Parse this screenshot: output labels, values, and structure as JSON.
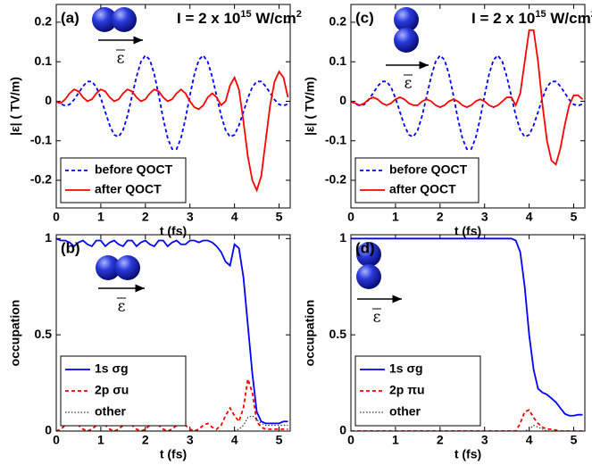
{
  "chart_data": [
    {
      "type": "line",
      "panel_label": "(a)",
      "intensity": {
        "base": "I = 2 x 10",
        "exp": "15",
        "unit": " W/cm",
        "unit_exp": "2"
      },
      "field_label": "ε",
      "xlabel": "t (fs)",
      "ylabel": "|ε|  ( TV/m)",
      "xlim": [
        0,
        5.25
      ],
      "ylim": [
        -0.27,
        0.245
      ],
      "xticks": [
        0,
        1,
        2,
        3,
        4,
        5
      ],
      "yticks": [
        -0.2,
        -0.1,
        0,
        0.1,
        0.2
      ],
      "legend": "lower left",
      "x": [
        0,
        0.1,
        0.2,
        0.3,
        0.4,
        0.5,
        0.6,
        0.7,
        0.8,
        0.9,
        1,
        1.1,
        1.2,
        1.3,
        1.4,
        1.5,
        1.6,
        1.7,
        1.8,
        1.9,
        2,
        2.1,
        2.2,
        2.3,
        2.4,
        2.5,
        2.6,
        2.7,
        2.8,
        2.9,
        3,
        3.1,
        3.2,
        3.3,
        3.4,
        3.5,
        3.6,
        3.7,
        3.8,
        3.9,
        4,
        4.1,
        4.2,
        4.3,
        4.4,
        4.5,
        4.6,
        4.7,
        4.8,
        4.9,
        5,
        5.1,
        5.2
      ],
      "series": [
        {
          "name": "before QOCT",
          "color": "#0000ff",
          "style": "dashed",
          "values": [
            0,
            -0.007,
            -0.011,
            -0.008,
            0.004,
            0.021,
            0.038,
            0.05,
            0.05,
            0.036,
            0.008,
            -0.027,
            -0.061,
            -0.085,
            -0.09,
            -0.073,
            -0.036,
            0.013,
            0.062,
            0.1,
            0.116,
            0.105,
            0.069,
            0.015,
            -0.044,
            -0.093,
            -0.121,
            -0.121,
            -0.093,
            -0.044,
            0.015,
            0.068,
            0.105,
            0.116,
            0.1,
            0.062,
            0.013,
            -0.036,
            -0.073,
            -0.09,
            -0.085,
            -0.061,
            -0.027,
            0.008,
            0.036,
            0.05,
            0.05,
            0.038,
            0.021,
            0.004,
            -0.008,
            -0.011,
            -0.007
          ]
        },
        {
          "name": "after QOCT",
          "color": "#ff0000",
          "style": "solid",
          "values": [
            0,
            -0.005,
            0.005,
            0.02,
            0.03,
            0.025,
            0.01,
            0,
            0.005,
            0.02,
            0.03,
            0.025,
            0.01,
            0,
            0.005,
            0.02,
            0.03,
            0.025,
            0.01,
            0,
            0.005,
            0.02,
            0.03,
            0.025,
            0.01,
            0,
            0.005,
            0.02,
            0.03,
            0.02,
            0,
            -0.015,
            -0.02,
            -0.01,
            0.01,
            0.02,
            0.01,
            -0.01,
            0,
            0.04,
            0.06,
            0.03,
            -0.05,
            -0.14,
            -0.2,
            -0.225,
            -0.19,
            -0.1,
            -0.01,
            0.05,
            0.075,
            0.06,
            0.01
          ]
        }
      ]
    },
    {
      "type": "line",
      "panel_label": "(c)",
      "intensity": {
        "base": "I = 2 x 10",
        "exp": "15",
        "unit": " W/cm",
        "unit_exp": "2"
      },
      "field_label": "ε",
      "xlabel": "t (fs)",
      "ylabel": "|ε|  ( TV/m)",
      "xlim": [
        0,
        5.25
      ],
      "ylim": [
        -0.27,
        0.245
      ],
      "xticks": [
        0,
        1,
        2,
        3,
        4,
        5
      ],
      "yticks": [
        -0.2,
        -0.1,
        0,
        0.1,
        0.2
      ],
      "legend": "lower left",
      "x": [
        0,
        0.1,
        0.2,
        0.3,
        0.4,
        0.5,
        0.6,
        0.7,
        0.8,
        0.9,
        1,
        1.1,
        1.2,
        1.3,
        1.4,
        1.5,
        1.6,
        1.7,
        1.8,
        1.9,
        2,
        2.1,
        2.2,
        2.3,
        2.4,
        2.5,
        2.6,
        2.7,
        2.8,
        2.9,
        3,
        3.1,
        3.2,
        3.3,
        3.4,
        3.5,
        3.6,
        3.7,
        3.8,
        3.9,
        4,
        4.1,
        4.2,
        4.3,
        4.4,
        4.5,
        4.6,
        4.7,
        4.8,
        4.9,
        5,
        5.1,
        5.2
      ],
      "series": [
        {
          "name": "before QOCT",
          "color": "#0000ff",
          "style": "dashed",
          "values": [
            0,
            -0.007,
            -0.011,
            -0.008,
            0.004,
            0.021,
            0.038,
            0.05,
            0.05,
            0.036,
            0.008,
            -0.027,
            -0.061,
            -0.085,
            -0.09,
            -0.073,
            -0.036,
            0.013,
            0.062,
            0.1,
            0.116,
            0.105,
            0.069,
            0.015,
            -0.044,
            -0.093,
            -0.121,
            -0.121,
            -0.093,
            -0.044,
            0.015,
            0.068,
            0.105,
            0.116,
            0.1,
            0.062,
            0.013,
            -0.036,
            -0.073,
            -0.09,
            -0.085,
            -0.061,
            -0.027,
            0.008,
            0.036,
            0.05,
            0.05,
            0.038,
            0.021,
            0.004,
            -0.008,
            -0.011,
            -0.007
          ]
        },
        {
          "name": "after QOCT",
          "color": "#ff0000",
          "style": "solid",
          "values": [
            0,
            -0.005,
            -0.01,
            -0.005,
            0.005,
            0.01,
            0.005,
            -0.005,
            -0.01,
            -0.005,
            0.005,
            0.01,
            0.005,
            -0.005,
            -0.01,
            -0.01,
            0,
            0.005,
            0,
            -0.01,
            -0.015,
            -0.01,
            0,
            0.005,
            0,
            -0.01,
            -0.015,
            -0.01,
            0,
            0.005,
            0,
            -0.01,
            -0.015,
            -0.01,
            0,
            0.01,
            0.01,
            -0.01,
            0.02,
            0.1,
            0.18,
            0.18,
            0.1,
            -0.01,
            -0.1,
            -0.15,
            -0.16,
            -0.12,
            -0.06,
            -0.01,
            0.015,
            0.015,
            0.005
          ]
        }
      ]
    },
    {
      "type": "line",
      "panel_label": "(b)",
      "field_label": "ε",
      "xlabel": "t (fs)",
      "ylabel": "occupation",
      "xlim": [
        0,
        5.25
      ],
      "ylim": [
        0,
        1.02
      ],
      "xticks": [
        0,
        1,
        2,
        3,
        4,
        5
      ],
      "yticks": [
        0,
        0.5,
        1
      ],
      "legend": "lower left",
      "x": [
        0,
        0.1,
        0.2,
        0.3,
        0.4,
        0.5,
        0.6,
        0.7,
        0.8,
        0.9,
        1,
        1.1,
        1.2,
        1.3,
        1.4,
        1.5,
        1.6,
        1.7,
        1.8,
        1.9,
        2,
        2.1,
        2.2,
        2.3,
        2.4,
        2.5,
        2.6,
        2.7,
        2.8,
        2.9,
        3,
        3.1,
        3.2,
        3.3,
        3.4,
        3.5,
        3.6,
        3.7,
        3.8,
        3.9,
        4,
        4.1,
        4.2,
        4.3,
        4.4,
        4.5,
        4.6,
        4.7,
        4.8,
        4.9,
        5,
        5.1,
        5.2
      ],
      "series": [
        {
          "name": "1s σg",
          "color": "#0000ff",
          "style": "solid",
          "values": [
            1,
            0.99,
            0.99,
            0.98,
            0.96,
            0.98,
            0.99,
            0.97,
            0.96,
            0.99,
            0.99,
            0.96,
            0.98,
            0.99,
            0.97,
            0.96,
            0.99,
            0.99,
            0.96,
            0.98,
            0.99,
            0.97,
            0.96,
            0.99,
            0.99,
            0.96,
            0.98,
            0.99,
            0.97,
            0.97,
            0.99,
            0.99,
            0.98,
            0.99,
            0.99,
            0.98,
            0.96,
            0.93,
            0.88,
            0.86,
            0.97,
            0.95,
            0.8,
            0.55,
            0.3,
            0.1,
            0.05,
            0.04,
            0.04,
            0.04,
            0.04,
            0.05,
            0.05
          ]
        },
        {
          "name": "2p σu",
          "color": "#ff0000",
          "style": "dashed",
          "values": [
            0,
            0.01,
            0.03,
            0.04,
            0.05,
            0.03,
            0.01,
            0,
            0.01,
            0.03,
            0.04,
            0.03,
            0.01,
            0,
            0.01,
            0.03,
            0.04,
            0.03,
            0.01,
            0,
            0.01,
            0.03,
            0.04,
            0.03,
            0.01,
            0,
            0.01,
            0.03,
            0.04,
            0.03,
            0.01,
            0,
            0.01,
            0.03,
            0.04,
            0.02,
            0.01,
            0.03,
            0.08,
            0.12,
            0.08,
            0.05,
            0.12,
            0.27,
            0.2,
            0.05,
            0.02,
            0.01,
            0.01,
            0.01,
            0.01,
            0.01,
            0.01
          ]
        },
        {
          "name": "other",
          "color": "#333333",
          "style": "dotted",
          "values": [
            0,
            0,
            0,
            0,
            0,
            0,
            0,
            0,
            0,
            0,
            0,
            0,
            0,
            0,
            0,
            0,
            0,
            0,
            0,
            0,
            0,
            0,
            0,
            0,
            0,
            0,
            0,
            0,
            0,
            0,
            0,
            0,
            0,
            0,
            0,
            0,
            0,
            0,
            0,
            0,
            0,
            0.01,
            0.03,
            0.07,
            0.08,
            0.06,
            0.04,
            0.03,
            0.03,
            0.03,
            0.03,
            0.03,
            0.03
          ]
        }
      ]
    },
    {
      "type": "line",
      "panel_label": "(d)",
      "field_label": "ε",
      "xlabel": "t (fs)",
      "ylabel": "occupation",
      "xlim": [
        0,
        5.25
      ],
      "ylim": [
        0,
        1.02
      ],
      "xticks": [
        0,
        1,
        2,
        3,
        4,
        5
      ],
      "yticks": [
        0,
        0.5,
        1
      ],
      "legend": "lower left",
      "x": [
        0,
        0.1,
        0.2,
        0.3,
        0.4,
        0.5,
        0.6,
        0.7,
        0.8,
        0.9,
        1,
        1.1,
        1.2,
        1.3,
        1.4,
        1.5,
        1.6,
        1.7,
        1.8,
        1.9,
        2,
        2.1,
        2.2,
        2.3,
        2.4,
        2.5,
        2.6,
        2.7,
        2.8,
        2.9,
        3,
        3.1,
        3.2,
        3.3,
        3.4,
        3.5,
        3.6,
        3.7,
        3.8,
        3.9,
        4,
        4.1,
        4.2,
        4.3,
        4.4,
        4.5,
        4.6,
        4.7,
        4.8,
        4.9,
        5,
        5.1,
        5.2
      ],
      "series": [
        {
          "name": "1s σg",
          "color": "#0000ff",
          "style": "solid",
          "values": [
            1,
            1,
            1,
            1,
            1,
            1,
            1,
            1,
            1,
            1,
            1,
            1,
            1,
            1,
            1,
            1,
            1,
            1,
            1,
            1,
            1,
            1,
            1,
            1,
            1,
            1,
            1,
            1,
            1,
            1,
            1,
            1,
            1,
            1,
            1,
            1,
            1,
            0.99,
            0.93,
            0.75,
            0.5,
            0.32,
            0.22,
            0.2,
            0.19,
            0.17,
            0.15,
            0.12,
            0.09,
            0.08,
            0.08,
            0.085,
            0.085
          ]
        },
        {
          "name": "2p πu",
          "color": "#ff0000",
          "style": "dashed",
          "values": [
            0,
            0,
            0,
            0,
            0,
            0,
            0,
            0,
            0,
            0,
            0,
            0,
            0,
            0,
            0,
            0,
            0,
            0,
            0,
            0,
            0,
            0,
            0,
            0,
            0,
            0,
            0,
            0,
            0,
            0,
            0,
            0,
            0,
            0,
            0,
            0,
            0,
            0,
            0.04,
            0.1,
            0.11,
            0.07,
            0.04,
            0.02,
            0.01,
            0.01,
            0.005,
            0,
            0,
            0,
            0,
            0,
            0
          ]
        },
        {
          "name": "other",
          "color": "#333333",
          "style": "dotted",
          "values": [
            0,
            0,
            0,
            0,
            0,
            0,
            0,
            0,
            0,
            0,
            0,
            0,
            0,
            0,
            0,
            0,
            0,
            0,
            0,
            0,
            0,
            0,
            0,
            0,
            0,
            0,
            0,
            0,
            0,
            0,
            0,
            0,
            0,
            0,
            0,
            0,
            0,
            0,
            0,
            0,
            0.01,
            0.03,
            0.02,
            0.01,
            0,
            0,
            0,
            0,
            0,
            0,
            0,
            0,
            0
          ]
        }
      ]
    }
  ]
}
